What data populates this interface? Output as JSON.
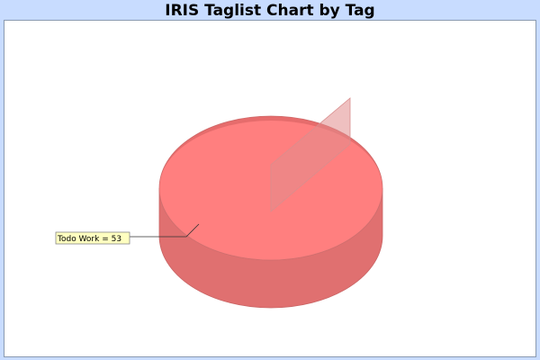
{
  "chart_data": {
    "type": "pie",
    "style": "3d",
    "title": "IRIS Taglist Chart by Tag",
    "slices": [
      {
        "label": "Todo Work",
        "value": 53,
        "color": "#ff7f7f"
      }
    ],
    "slice_labels": [
      "Todo Work = 53"
    ],
    "label_background": "#ffffc0",
    "legend": "none"
  },
  "colors": {
    "background": "#c8dcff",
    "plot_background": "#ffffff",
    "pie_top": "#ff7f7f",
    "pie_side": "#e07070"
  }
}
